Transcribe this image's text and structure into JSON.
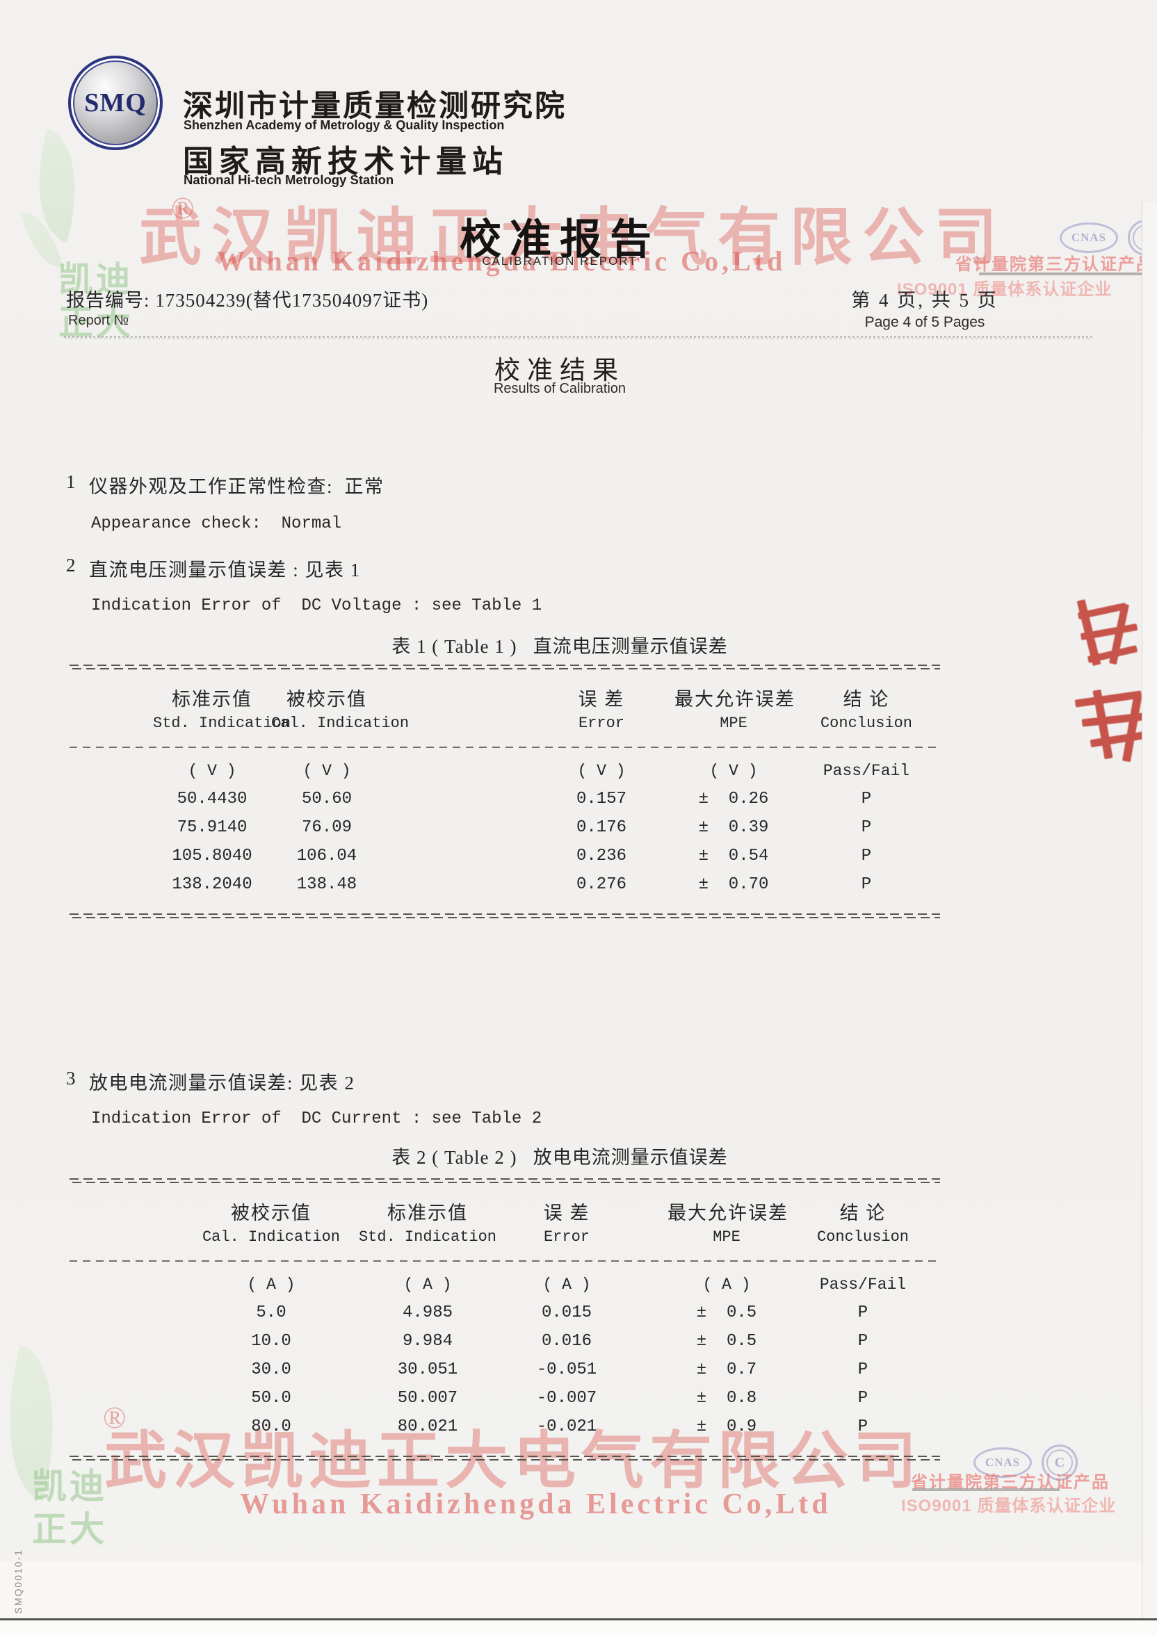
{
  "header": {
    "logo_text": "SMQ",
    "org_zh": "深圳市计量质量检测研究院",
    "org_en": "Shenzhen Academy of Metrology & Quality Inspection",
    "station_zh": "国家高新技术计量站",
    "station_en": "National Hi-tech Metrology Station",
    "title_zh": "校准报告",
    "title_en": "CALIBRATION REPORT"
  },
  "meta": {
    "report_label": "报告编号: 173504239(替代173504097证书)",
    "report_sub": "Report №",
    "page_zh": "第 4 页, 共 5 页",
    "page_en": "Page 4 of 5 Pages"
  },
  "section": {
    "title_zh": "校准结果",
    "title_en": "Results of Calibration"
  },
  "items": [
    {
      "no": "1",
      "zh": "仪器外观及工作正常性检查:  正常",
      "en": "Appearance check:  Normal"
    },
    {
      "no": "2",
      "zh": "直流电压测量示值误差 : 见表 1",
      "en": "Indication Error of  DC Voltage : see Table 1"
    },
    {
      "no": "3",
      "zh": "放电电流测量示值误差: 见表 2",
      "en": "Indication Error of  DC Current : see Table 2"
    }
  ],
  "table1": {
    "caption": "表 1 ( Table 1 )   直流电压测量示值误差",
    "headers_zh": [
      "标准示值",
      "被校示值",
      "误 差",
      "最大允许误差",
      "结 论"
    ],
    "headers_en": [
      "Std. Indication",
      "Cal. Indication",
      "Error",
      "MPE",
      "Conclusion"
    ],
    "units": [
      "( V )",
      "( V )",
      "( V )",
      "( V )",
      "Pass/Fail"
    ],
    "rows": [
      [
        "50.4430",
        "50.60",
        "0.157",
        "±  0.26",
        "P"
      ],
      [
        "75.9140",
        "76.09",
        "0.176",
        "±  0.39",
        "P"
      ],
      [
        "105.8040",
        "106.04",
        "0.236",
        "±  0.54",
        "P"
      ],
      [
        "138.2040",
        "138.48",
        "0.276",
        "±  0.70",
        "P"
      ]
    ]
  },
  "table2": {
    "caption": "表 2 ( Table 2 )   放电电流测量示值误差",
    "headers_zh": [
      "被校示值",
      "标准示值",
      "误 差",
      "最大允许误差",
      "结 论"
    ],
    "headers_en": [
      "Cal. Indication",
      "Std. Indication",
      "Error",
      "MPE",
      "Conclusion"
    ],
    "units": [
      "( A )",
      "( A )",
      "( A )",
      "( A )",
      "Pass/Fail"
    ],
    "rows": [
      [
        "5.0",
        "4.985",
        "0.015",
        "±  0.5",
        "P"
      ],
      [
        "10.0",
        "9.984",
        "0.016",
        "±  0.5",
        "P"
      ],
      [
        "30.0",
        "30.051",
        "-0.051",
        "±  0.7",
        "P"
      ],
      [
        "50.0",
        "50.007",
        "-0.007",
        "±  0.8",
        "P"
      ],
      [
        "80.0",
        "80.021",
        "-0.021",
        "±  0.9",
        "P"
      ]
    ]
  },
  "watermarks": {
    "company_zh": "武汉凯迪正大电气有限公司",
    "company_en": "Wuhan Kaidizhengda Electric Co,Ltd",
    "brand_word1": "凯迪",
    "brand_word2": "正大",
    "registered": "®"
  },
  "certs": {
    "cnas": "CNAS",
    "ctc": "C",
    "line1": "省计量院第三方认证产品",
    "line2": "ISO9001 质量体系认证企业"
  },
  "footer": {
    "doc_code": "SMQ0010-1"
  },
  "colors": {
    "watermark_red": "rgba(219,80,74,0.38)",
    "watermark_green": "rgba(148,198,138,0.55)",
    "stamp_red": "#c0392f",
    "cert_blue": "#b6b6d6"
  }
}
